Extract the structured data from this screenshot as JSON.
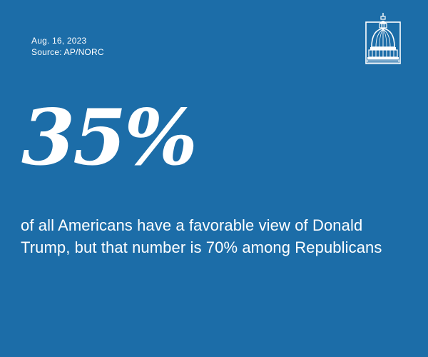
{
  "colors": {
    "background": "#1c6da8",
    "foreground": "#ffffff"
  },
  "meta": {
    "date": "Aug. 16, 2023",
    "source": "Source: AP/NORC"
  },
  "logo": {
    "icon": "capitol-dome-icon"
  },
  "stat": {
    "value": "35%",
    "description": "of all Americans have a favorable view of Donald Trump, but that number is 70% among Republicans"
  }
}
